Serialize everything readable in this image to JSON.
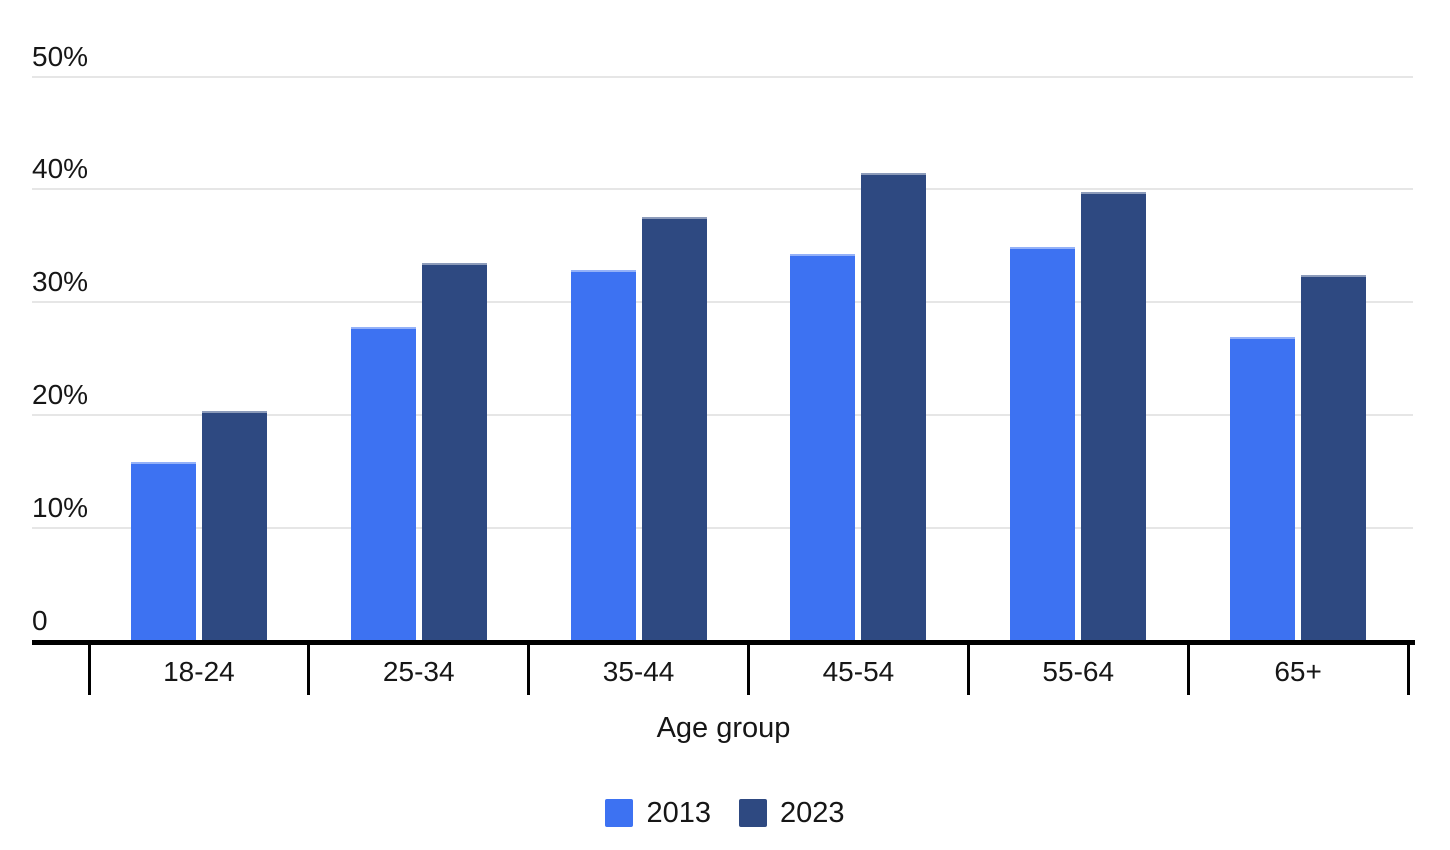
{
  "chart_data": {
    "type": "bar",
    "title": "",
    "xlabel": "Age group",
    "ylabel": "",
    "categories": [
      "18-24",
      "25-34",
      "35-44",
      "45-54",
      "55-64",
      "65+"
    ],
    "series": [
      {
        "name": "2013",
        "color": "#3D72F2",
        "values": [
          15.8,
          27.7,
          32.8,
          34.2,
          34.8,
          26.8
        ]
      },
      {
        "name": "2023",
        "color": "#2E4981",
        "values": [
          20.3,
          33.4,
          37.5,
          41.4,
          39.7,
          32.3
        ]
      }
    ],
    "y_axis": {
      "min": 0,
      "max": 50,
      "ticks": [
        {
          "value": 0,
          "label": "0"
        },
        {
          "value": 10,
          "label": "10%"
        },
        {
          "value": 20,
          "label": "20%"
        },
        {
          "value": 30,
          "label": "30%"
        },
        {
          "value": 40,
          "label": "40%"
        },
        {
          "value": 50,
          "label": "50%"
        }
      ]
    },
    "grid": true,
    "legend_position": "bottom"
  },
  "colors": {
    "background": "#ffffff",
    "gridline": "#e6e6e6",
    "axis": "#000000",
    "text": "#161616",
    "series_2013": "#3D72F2",
    "series_2023": "#2E4981"
  }
}
